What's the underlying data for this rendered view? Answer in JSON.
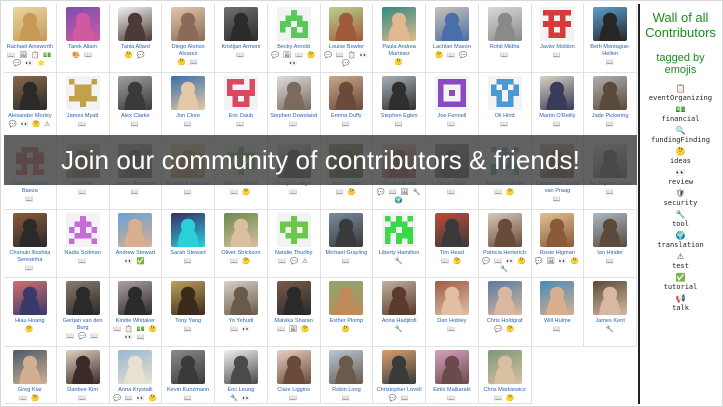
{
  "sidebar": {
    "title": "Wall of all Contributors",
    "subtitle": "tagged by emojis",
    "items": [
      {
        "emoji": "📋",
        "label": "eventOrganizing"
      },
      {
        "emoji": "💵",
        "label": "financial"
      },
      {
        "emoji": "🔍",
        "label": "fundingFinding"
      },
      {
        "emoji": "🤔",
        "label": "ideas"
      },
      {
        "emoji": "👀",
        "label": "review"
      },
      {
        "emoji": "🛡",
        "label": "security"
      },
      {
        "emoji": "🔧",
        "label": "tool"
      },
      {
        "emoji": "🌍",
        "label": "translation"
      },
      {
        "emoji": "⚠",
        "label": "test"
      },
      {
        "emoji": "✅",
        "label": "tutorial"
      },
      {
        "emoji": "📢",
        "label": "talk"
      }
    ]
  },
  "banner": {
    "text": "Join our community of contributors & friends!"
  },
  "contributors": [
    {
      "name": "Rachael Ainsworth",
      "emojis": "📖 🖼 📋 💵 💬 👀 ⭐",
      "avatar": {
        "type": "photo",
        "colors": [
          "#e9d6a0",
          "#c79a5a"
        ]
      }
    },
    {
      "name": "Tarek Allam",
      "emojis": "🎨 📖",
      "avatar": {
        "type": "photo",
        "colors": [
          "#7a4fb3",
          "#d05aa0"
        ]
      }
    },
    {
      "name": "Tania Allard",
      "emojis": "🤔 💬",
      "avatar": {
        "type": "photo",
        "colors": [
          "#f1f1f1",
          "#4c3a36"
        ]
      }
    },
    {
      "name": "Diego Alonso Alvarez",
      "emojis": "🤔 📖",
      "avatar": {
        "type": "photo",
        "colors": [
          "#e3c6aa",
          "#8a6b57"
        ]
      }
    },
    {
      "name": "Kristijan Armeni",
      "emojis": "📖",
      "avatar": {
        "type": "photo",
        "colors": [
          "#6f6f6f",
          "#2b2b2b"
        ]
      }
    },
    {
      "name": "Becky Arnold",
      "emojis": "💬 🖼 📖 🤔 👀",
      "avatar": {
        "type": "identicon",
        "color": "#5ac85a",
        "pattern": "0010001110110111010100111"
      }
    },
    {
      "name": "Louise Bowler",
      "emojis": "💬 📖 📋 👀 💬",
      "avatar": {
        "type": "photo",
        "colors": [
          "#b7d38c",
          "#a05a3a"
        ]
      }
    },
    {
      "name": "Paula Andrea Martinez",
      "emojis": "🤔",
      "avatar": {
        "type": "photo",
        "colors": [
          "#2f8a82",
          "#e0b98f"
        ]
      }
    },
    {
      "name": "Lachlan Mason",
      "emojis": "🤔 📖 💬",
      "avatar": {
        "type": "photo",
        "colors": [
          "#c9c3b8",
          "#4a6fa8"
        ]
      }
    },
    {
      "name": "Rohit Midha",
      "emojis": "📖",
      "avatar": {
        "type": "photo",
        "colors": [
          "#d9d9d9",
          "#8a8a8a"
        ]
      }
    },
    {
      "name": "Javier Moldon",
      "emojis": "📖",
      "avatar": {
        "type": "identicon",
        "color": "#d63a3a",
        "pattern": "1111101010111110101001110"
      }
    },
    {
      "name": "Beth Montague-Hellen",
      "emojis": "📖",
      "avatar": {
        "type": "photo",
        "colors": [
          "#5aa0d0",
          "#262626"
        ]
      }
    },
    {
      "name": "Alexander Morley",
      "emojis": "💬 👀 🤔 ⚠",
      "avatar": {
        "type": "photo",
        "colors": [
          "#8a6a48",
          "#2a2a2a"
        ]
      }
    },
    {
      "name": "James Myatt",
      "emojis": "📖",
      "avatar": {
        "type": "identicon",
        "color": "#c2a14a",
        "pattern": "1000101110011101111100100"
      }
    },
    {
      "name": "Alex Clarke",
      "emojis": "📖",
      "avatar": {
        "type": "photo",
        "colors": [
          "#a0a0a0",
          "#3a3a3a"
        ]
      }
    },
    {
      "name": "Jon Clore",
      "emojis": "📖",
      "avatar": {
        "type": "photo",
        "colors": [
          "#3a6ea5",
          "#e4c9a8"
        ]
      }
    },
    {
      "name": "Eric Daub",
      "emojis": "📖",
      "avatar": {
        "type": "identicon",
        "color": "#d94a62",
        "pattern": "1110110001111110101001110"
      }
    },
    {
      "name": "Stephen Dowsland",
      "emojis": "📖",
      "avatar": {
        "type": "photo",
        "colors": [
          "#dedede",
          "#7b6a5d"
        ]
      }
    },
    {
      "name": "Emma Duffy",
      "emojis": "📖",
      "avatar": {
        "type": "photo",
        "colors": [
          "#c9a68a",
          "#6a4a3a"
        ]
      }
    },
    {
      "name": "Stephen Eglen",
      "emojis": "📖",
      "avatar": {
        "type": "photo",
        "colors": [
          "#a7b0b8",
          "#2f2f2f"
        ]
      }
    },
    {
      "name": "Joe Fennell",
      "emojis": "📖",
      "avatar": {
        "type": "identicon",
        "color": "#8a4ac2",
        "pattern": "1111110001101011000111111"
      }
    },
    {
      "name": "Oli Hind",
      "emojis": "📖",
      "avatar": {
        "type": "identicon",
        "color": "#4a9ad1",
        "pattern": "0111010101110110101001110"
      }
    },
    {
      "name": "Martin O'Reilly",
      "emojis": "📖",
      "avatar": {
        "type": "photo",
        "colors": [
          "#d9d2c2",
          "#3a3a5a"
        ]
      }
    },
    {
      "name": "Jade Pickering",
      "emojis": "📖",
      "avatar": {
        "type": "photo",
        "colors": [
          "#b0b0b0",
          "#5a4a3a"
        ]
      }
    },
    {
      "name": "Carlos Suarez Baeza",
      "emojis": "📖",
      "avatar": {
        "type": "identicon",
        "color": "#d84a4a",
        "pattern": "0111011011111110101011011"
      }
    },
    {
      "name": "Matt Hill",
      "emojis": "📖",
      "avatar": {
        "type": "photo",
        "colors": [
          "#cfd8e0",
          "#8a6a4a"
        ]
      }
    },
    {
      "name": "James Robinson",
      "emojis": "📖",
      "avatar": {
        "type": "photo",
        "colors": [
          "#8fb0c8",
          "#4a4a4a"
        ]
      }
    },
    {
      "name": "Rosanna Ascione",
      "emojis": "📖",
      "avatar": {
        "type": "photo",
        "colors": [
          "#f0e0b0",
          "#c08a4a"
        ]
      }
    },
    {
      "name": "Oliver Forrest",
      "emojis": "📖 🤔",
      "avatar": {
        "type": "identicon",
        "color": "#6ab84a",
        "pattern": "0010011111101010111100100"
      }
    },
    {
      "name": "Pooja Gadige",
      "emojis": "📖",
      "avatar": {
        "type": "photo",
        "colors": [
          "#e6e6e6",
          "#3a2a2a"
        ]
      }
    },
    {
      "name": "Jason Gates",
      "emojis": "📖 🤔",
      "avatar": {
        "type": "photo",
        "colors": [
          "#9a7a5a",
          "#3a4a2a"
        ]
      }
    },
    {
      "name": "Sarah Gibson",
      "emojis": "💬 📖 🖼 🔧 🌍",
      "avatar": {
        "type": "photo",
        "colors": [
          "#f0d8c8",
          "#a03a3a"
        ]
      }
    },
    {
      "name": "Oscar Giles",
      "emojis": "📖",
      "avatar": {
        "type": "photo",
        "colors": [
          "#8a8a7a",
          "#3a3a3a"
        ]
      }
    },
    {
      "name": "Richard Gilham",
      "emojis": "📖 🤔",
      "avatar": {
        "type": "identicon",
        "color": "#4aa8b8",
        "pattern": "1010101110010101111110001"
      }
    },
    {
      "name": "Cassandra Gould van Praag",
      "emojis": "📖",
      "avatar": {
        "type": "photo",
        "colors": [
          "#d0b0a0",
          "#6a3a2a"
        ]
      }
    },
    {
      "name": "Ali Seyhun Saral",
      "emojis": "📖",
      "avatar": {
        "type": "photo",
        "colors": [
          "#f2f2f2",
          "#4a4a4a"
        ]
      }
    },
    {
      "name": "Chanuki Illushka Seresinha",
      "emojis": "📖",
      "avatar": {
        "type": "photo",
        "colors": [
          "#8a5a3a",
          "#2a2a2a"
        ]
      }
    },
    {
      "name": "Nadia Soliman",
      "emojis": "📖",
      "avatar": {
        "type": "identicon",
        "color": "#c86ad8",
        "pattern": "0010001110101010111010001"
      }
    },
    {
      "name": "Andrew Stewart",
      "emojis": "👀 ✅",
      "avatar": {
        "type": "photo",
        "colors": [
          "#6aa0d8",
          "#d8b090"
        ]
      }
    },
    {
      "name": "Sarah Stewart",
      "emojis": "📖",
      "avatar": {
        "type": "photo",
        "colors": [
          "#3a2a6a",
          "#2ad0d8"
        ]
      }
    },
    {
      "name": "Oliver Strickson",
      "emojis": "📖 🤔",
      "avatar": {
        "type": "photo",
        "colors": [
          "#6a8a4a",
          "#d8c0a0"
        ]
      }
    },
    {
      "name": "Natalie Thurlby",
      "emojis": "📖 💬 ⚠",
      "avatar": {
        "type": "identicon",
        "color": "#6ac84a",
        "pattern": "0010011111101010111100100"
      }
    },
    {
      "name": "Michael Grayling",
      "emojis": "📖",
      "avatar": {
        "type": "photo",
        "colors": [
          "#7a8aa0",
          "#3a3a3a"
        ]
      }
    },
    {
      "name": "Liberty Hamilton",
      "emojis": "🔧",
      "avatar": {
        "type": "identicon",
        "color": "#3ad84a",
        "pattern": "1010101110110111011110101"
      }
    },
    {
      "name": "Tim Head",
      "emojis": "📖 🤔",
      "avatar": {
        "type": "photo",
        "colors": [
          "#c04a3a",
          "#3a3a3a"
        ]
      }
    },
    {
      "name": "Patricia Herterich",
      "emojis": "💬 📖 👀 🤔 🔧",
      "avatar": {
        "type": "photo",
        "colors": [
          "#d8c8b8",
          "#6a4a3a"
        ]
      }
    },
    {
      "name": "Rosie Higman",
      "emojis": "💬 🖼 👀 🤔",
      "avatar": {
        "type": "photo",
        "colors": [
          "#e0c090",
          "#8a5a3a"
        ]
      }
    },
    {
      "name": "Ian Hinder",
      "emojis": "📖",
      "avatar": {
        "type": "photo",
        "colors": [
          "#a8b8c8",
          "#5a4a3a"
        ]
      }
    },
    {
      "name": "Hiau Hoang",
      "emojis": "🤔",
      "avatar": {
        "type": "photo",
        "colors": [
          "#d07070",
          "#3a3a6a"
        ]
      }
    },
    {
      "name": "Gertjan van den Burg",
      "emojis": "📖 💬 📖",
      "avatar": {
        "type": "photo",
        "colors": [
          "#8a7a6a",
          "#2a2a2a"
        ]
      }
    },
    {
      "name": "Kirstie Whitaker",
      "emojis": "📖 📋 💵 🤔 👀 📖",
      "avatar": {
        "type": "photo",
        "colors": [
          "#b0a0a0",
          "#2a2a2a"
        ]
      }
    },
    {
      "name": "Tony Yang",
      "emojis": "📖",
      "avatar": {
        "type": "photo",
        "colors": [
          "#c0a060",
          "#3a2a1a"
        ]
      }
    },
    {
      "name": "Yo Yehudi",
      "emojis": "📖 👀",
      "avatar": {
        "type": "photo",
        "colors": [
          "#d8d0c8",
          "#6a5a4a"
        ]
      }
    },
    {
      "name": "Malvika Sharan",
      "emojis": "📖 🖼 🤔",
      "avatar": {
        "type": "photo",
        "colors": [
          "#7a5a4a",
          "#2a2a2a"
        ]
      }
    },
    {
      "name": "Esther Plomp",
      "emojis": "🤔",
      "avatar": {
        "type": "photo",
        "colors": [
          "#8aa870",
          "#c08a5a"
        ]
      }
    },
    {
      "name": "Anna Hadjitofi",
      "emojis": "🔧",
      "avatar": {
        "type": "photo",
        "colors": [
          "#c0b0a0",
          "#5a3a2a"
        ]
      }
    },
    {
      "name": "Dan Hobley",
      "emojis": "📖",
      "avatar": {
        "type": "photo",
        "colors": [
          "#a05a4a",
          "#e0c0a0"
        ]
      }
    },
    {
      "name": "Chris Holdgraf",
      "emojis": "💬 🤔",
      "avatar": {
        "type": "photo",
        "colors": [
          "#5a7aa0",
          "#d8b8a0"
        ]
      }
    },
    {
      "name": "Will Hulme",
      "emojis": "📖",
      "avatar": {
        "type": "photo",
        "colors": [
          "#4a8ab8",
          "#d8b090"
        ]
      }
    },
    {
      "name": "James Kent",
      "emojis": "🔧",
      "avatar": {
        "type": "photo",
        "colors": [
          "#5a4a3a",
          "#d8b8a0"
        ]
      }
    },
    {
      "name": "Greg Kiar",
      "emojis": "📖 🤔",
      "avatar": {
        "type": "photo",
        "colors": [
          "#4a5a6a",
          "#d0b090"
        ]
      }
    },
    {
      "name": "Danbee Kim",
      "emojis": "📖",
      "avatar": {
        "type": "photo",
        "colors": [
          "#e0d0c0",
          "#3a2a2a"
        ]
      }
    },
    {
      "name": "Anna Krystalli",
      "emojis": "💬 📖 👀 🤔",
      "avatar": {
        "type": "photo",
        "colors": [
          "#9ab8d0",
          "#e8e0d0"
        ]
      }
    },
    {
      "name": "Kevin Kunzmann",
      "emojis": "📖",
      "avatar": {
        "type": "photo",
        "colors": [
          "#8a8a8a",
          "#3a3a3a"
        ]
      }
    },
    {
      "name": "Eric Leung",
      "emojis": "🔧 👀",
      "avatar": {
        "type": "photo",
        "colors": [
          "#f0f0f0",
          "#4a4a4a"
        ]
      }
    },
    {
      "name": "Clare Liggins",
      "emojis": "📖",
      "avatar": {
        "type": "photo",
        "colors": [
          "#e8d0c0",
          "#6a4a3a"
        ]
      }
    },
    {
      "name": "Robin Long",
      "emojis": "📖",
      "avatar": {
        "type": "photo",
        "colors": [
          "#b8c8d8",
          "#6a5a4a"
        ]
      }
    },
    {
      "name": "Christopher Lovell",
      "emojis": "💬 📖",
      "avatar": {
        "type": "photo",
        "colors": [
          "#d8a070",
          "#3a3a3a"
        ]
      }
    },
    {
      "name": "Eirini Malliaraki",
      "emojis": "📖",
      "avatar": {
        "type": "photo",
        "colors": [
          "#d8a0c0",
          "#6a4a4a"
        ]
      }
    },
    {
      "name": "Chris Markiewicz",
      "emojis": "📖 🤔",
      "avatar": {
        "type": "photo",
        "colors": [
          "#7a9a7a",
          "#d8c0a0"
        ]
      }
    }
  ]
}
